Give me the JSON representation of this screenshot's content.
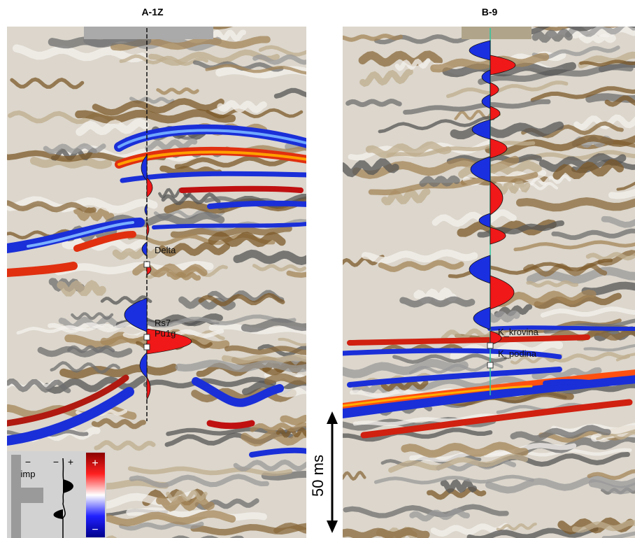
{
  "panels": [
    {
      "title": "A-1Z",
      "markers": [
        "Delta",
        "Rs7",
        "Pu1g"
      ]
    },
    {
      "title": "B-9",
      "markers": [
        "K_krovina",
        "K_podina"
      ]
    }
  ],
  "scale_bar": "50 ms",
  "legend": {
    "imp_sign": "−",
    "imp": "imp",
    "wavelet_minus": "−",
    "wavelet_plus": "+",
    "colorbar_plus": "+",
    "colorbar_minus": "−"
  }
}
